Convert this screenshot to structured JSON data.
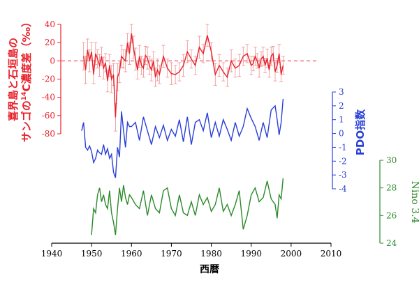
{
  "chart_data": {
    "type": "line",
    "xlabel": "西暦",
    "x_axis": {
      "range": [
        1940,
        2010
      ],
      "ticks": [
        1940,
        1950,
        1960,
        1970,
        1980,
        1990,
        2000,
        2010
      ]
    },
    "colors": {
      "c14": "#e8202a",
      "c14_err": "#f09090",
      "pdo": "#2a3fd6",
      "nino": "#2a8a2a"
    },
    "series": [
      {
        "key": "c14",
        "ylabel_line1": "喜界島と石垣島の",
        "ylabel_line2": "サンゴの",
        "ylabel_sup": "14",
        "ylabel_tail": "C濃度差（‰）",
        "y_range": [
          -80,
          40
        ],
        "y_ticks": [
          "40",
          "20",
          "0",
          "-20",
          "-40",
          "-60",
          "-80"
        ],
        "zero_line": true,
        "x": [
          1948,
          1948.5,
          1949,
          1949.5,
          1950,
          1950.5,
          1951,
          1951.5,
          1952,
          1952.5,
          1953,
          1953.5,
          1954,
          1954.5,
          1955,
          1955.5,
          1956,
          1956.5,
          1957,
          1957.5,
          1958,
          1958.5,
          1959,
          1959.5,
          1960,
          1960.5,
          1961,
          1961.5,
          1962,
          1962.5,
          1963,
          1963.5,
          1964,
          1964.5,
          1965,
          1965.5,
          1966,
          1966.5,
          1967,
          1968,
          1969,
          1970,
          1971,
          1972,
          1973,
          1974,
          1975,
          1976,
          1977,
          1978,
          1979,
          1980,
          1981,
          1982,
          1983,
          1984,
          1985,
          1986,
          1987,
          1988,
          1989,
          1990,
          1990.5,
          1991,
          1991.5,
          1992,
          1992.5,
          1993,
          1993.5,
          1994,
          1994.5,
          1995,
          1995.5,
          1996,
          1996.5,
          1997,
          1997.5,
          1998
        ],
        "values": [
          5,
          -10,
          12,
          0,
          10,
          -15,
          8,
          2,
          -5,
          5,
          -8,
          -2,
          -22,
          -5,
          -20,
          -15,
          -62,
          -18,
          -12,
          5,
          2,
          0,
          20,
          8,
          30,
          15,
          2,
          -10,
          5,
          -5,
          -8,
          6,
          3,
          -5,
          -10,
          0,
          -18,
          -10,
          -15,
          5,
          -8,
          -14,
          -15,
          -12,
          -5,
          10,
          2,
          -5,
          15,
          8,
          28,
          10,
          -15,
          -5,
          -12,
          -18,
          0,
          -8,
          -5,
          5,
          8,
          -5,
          -3,
          5,
          0,
          -8,
          2,
          5,
          -5,
          3,
          -10,
          5,
          8,
          -12,
          -5,
          8,
          -15,
          -5
        ],
        "errors": [
          15,
          15,
          12,
          12,
          10,
          10,
          12,
          10,
          12,
          10,
          12,
          10,
          12,
          12,
          15,
          12,
          15,
          15,
          12,
          12,
          10,
          12,
          10,
          12,
          10,
          12,
          12,
          10,
          12,
          10,
          10,
          10,
          12,
          10,
          12,
          10,
          10,
          12,
          10,
          12,
          10,
          12,
          10,
          10,
          12,
          12,
          10,
          10,
          12,
          10,
          12,
          10,
          12,
          12,
          10,
          10,
          12,
          10,
          12,
          10,
          10,
          10,
          8,
          10,
          8,
          10,
          8,
          10,
          8,
          10,
          8,
          10,
          8,
          10,
          8,
          10,
          8,
          10
        ]
      },
      {
        "key": "pdo",
        "ylabel": "PDO指数",
        "y_range": [
          -4,
          3
        ],
        "y_ticks": [
          "3",
          "2",
          "1",
          "0",
          "-1",
          "-2",
          "-3",
          "-4"
        ],
        "x": [
          1947.5,
          1948,
          1948.5,
          1949,
          1949.5,
          1950,
          1950.5,
          1951,
          1951.5,
          1952,
          1952.5,
          1953,
          1953.5,
          1954,
          1954.5,
          1955,
          1955.5,
          1956,
          1956.5,
          1957,
          1957.5,
          1958,
          1958.5,
          1959,
          1959.5,
          1960,
          1961,
          1962,
          1963,
          1964,
          1965,
          1966,
          1967,
          1968,
          1969,
          1970,
          1971,
          1972,
          1973,
          1974,
          1975,
          1976,
          1977,
          1978,
          1979,
          1980,
          1981,
          1982,
          1983,
          1984,
          1985,
          1986,
          1987,
          1988,
          1989,
          1990,
          1991,
          1992,
          1993,
          1994,
          1995,
          1996,
          1996.5,
          1997,
          1997.5,
          1998
        ],
        "values": [
          0.2,
          0.8,
          -1.0,
          -1.2,
          -0.9,
          -1.3,
          -2.1,
          -1.8,
          -1.2,
          -1.4,
          -1.5,
          -0.8,
          -1.5,
          -1.1,
          -1.8,
          -1.5,
          -2.8,
          -3.2,
          -1.0,
          -1.7,
          1.6,
          0.2,
          -1.0,
          0.8,
          0.5,
          0.5,
          0.8,
          -0.5,
          1.2,
          0.2,
          -0.8,
          0.5,
          -0.3,
          0.6,
          -0.5,
          0.3,
          -0.2,
          1.0,
          -0.6,
          1.2,
          -0.8,
          0.8,
          1.0,
          0.2,
          1.5,
          -0.3,
          0.8,
          -0.2,
          1.0,
          0.3,
          -0.5,
          0.8,
          -0.2,
          0.5,
          1.8,
          1.1,
          0.5,
          -0.5,
          0.8,
          -0.3,
          1.7,
          2.0,
          1.0,
          -0.1,
          0.8,
          2.5
        ]
      },
      {
        "key": "nino",
        "ylabel": "Nino 3.4",
        "y_range": [
          24,
          30
        ],
        "y_ticks": [
          "30",
          "28",
          "26",
          "24"
        ],
        "x": [
          1950,
          1950.5,
          1951,
          1951.5,
          1952,
          1952.5,
          1953,
          1953.5,
          1954,
          1954.5,
          1955,
          1955.5,
          1956,
          1956.5,
          1957,
          1957.5,
          1958,
          1958.5,
          1959,
          1959.5,
          1960,
          1961,
          1962,
          1963,
          1964,
          1965,
          1966,
          1967,
          1968,
          1969,
          1970,
          1971,
          1972,
          1973,
          1974,
          1975,
          1976,
          1977,
          1978,
          1979,
          1980,
          1981,
          1982,
          1983,
          1984,
          1985,
          1986,
          1987,
          1988,
          1989,
          1990,
          1991,
          1992,
          1993,
          1994,
          1995,
          1996,
          1996.5,
          1997,
          1997.5,
          1998
        ],
        "values": [
          24.6,
          26.5,
          26.2,
          27.5,
          28.0,
          27.0,
          27.5,
          26.8,
          26.5,
          27.8,
          26.2,
          25.5,
          24.6,
          26.5,
          28.0,
          27.0,
          28.2,
          27.3,
          26.8,
          27.5,
          27.3,
          26.8,
          26.5,
          27.8,
          26.0,
          27.5,
          26.5,
          26.2,
          27.8,
          28.0,
          26.5,
          26.0,
          27.5,
          26.2,
          26.0,
          27.0,
          26.0,
          27.5,
          26.8,
          27.3,
          26.3,
          26.8,
          28.0,
          26.3,
          26.8,
          26.0,
          26.8,
          27.8,
          25.0,
          26.0,
          27.5,
          28.0,
          27.0,
          27.3,
          28.5,
          27.2,
          26.8,
          25.8,
          27.5,
          27.2,
          28.7
        ]
      }
    ]
  }
}
